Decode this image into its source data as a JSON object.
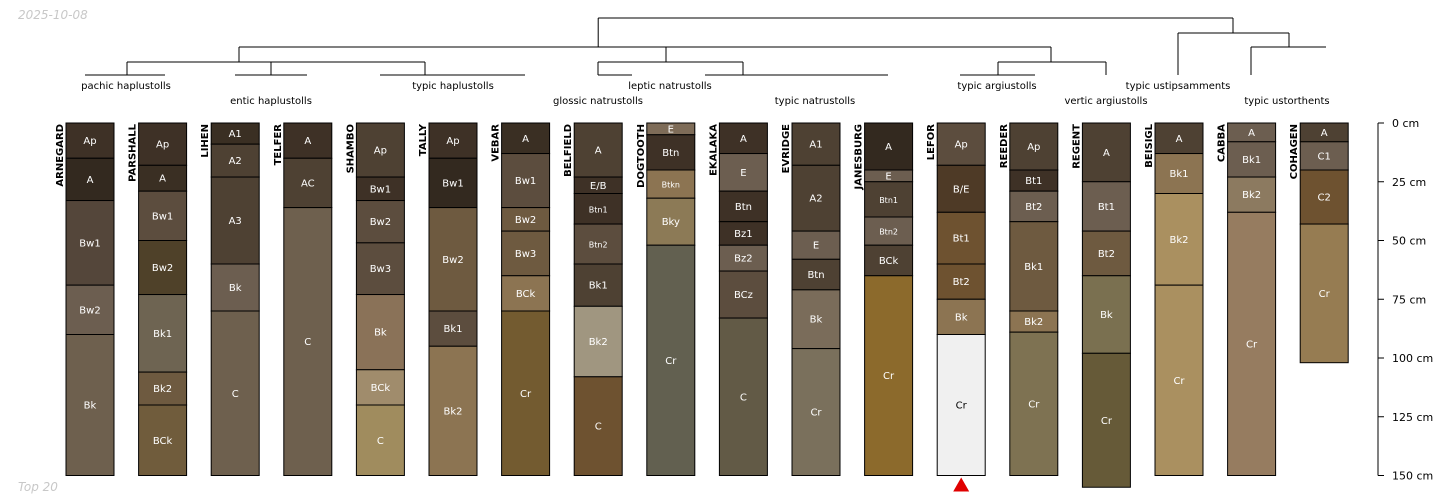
{
  "meta": {
    "date": "2025-10-08",
    "footer": "Top 20"
  },
  "chart_data": {
    "type": "soil-profile-sketch",
    "depth_axis": {
      "unit": "cm",
      "min": 0,
      "max": 150,
      "ticks": [
        {
          "value": 0,
          "label": "0 cm"
        },
        {
          "value": 25,
          "label": "25 cm"
        },
        {
          "value": 50,
          "label": "50 cm"
        },
        {
          "value": 75,
          "label": "75 cm"
        },
        {
          "value": 100,
          "label": "100 cm"
        },
        {
          "value": 125,
          "label": "125 cm"
        },
        {
          "value": 150,
          "label": "150 cm"
        }
      ]
    },
    "profiles": [
      {
        "name": "ARNEGARD",
        "horizons": [
          {
            "name": "Ap",
            "top": 0,
            "bottom": 15,
            "color": "#3e3126"
          },
          {
            "name": "A",
            "top": 15,
            "bottom": 33,
            "color": "#33291f"
          },
          {
            "name": "Bw1",
            "top": 33,
            "bottom": 69,
            "color": "#54463a"
          },
          {
            "name": "Bw2",
            "top": 69,
            "bottom": 90,
            "color": "#6c5e50"
          },
          {
            "name": "Bk",
            "top": 90,
            "bottom": 150,
            "color": "#6e604e"
          }
        ]
      },
      {
        "name": "PARSHALL",
        "horizons": [
          {
            "name": "Ap",
            "top": 0,
            "bottom": 18,
            "color": "#3e3126"
          },
          {
            "name": "A",
            "top": 18,
            "bottom": 29,
            "color": "#3a2f23"
          },
          {
            "name": "Bw1",
            "top": 29,
            "bottom": 50,
            "color": "#5c4d3e"
          },
          {
            "name": "Bw2",
            "top": 50,
            "bottom": 73,
            "color": "#4f4129"
          },
          {
            "name": "Bk1",
            "top": 73,
            "bottom": 106,
            "color": "#6e6452"
          },
          {
            "name": "Bk2",
            "top": 106,
            "bottom": 120,
            "color": "#6e5a40"
          },
          {
            "name": "BCk",
            "top": 120,
            "bottom": 150,
            "color": "#705c3c"
          }
        ]
      },
      {
        "name": "LIHEN",
        "horizons": [
          {
            "name": "A1",
            "top": 0,
            "bottom": 9,
            "color": "#3a2f23"
          },
          {
            "name": "A2",
            "top": 9,
            "bottom": 23,
            "color": "#4e4133"
          },
          {
            "name": "A3",
            "top": 23,
            "bottom": 60,
            "color": "#4e4133"
          },
          {
            "name": "Bk",
            "top": 60,
            "bottom": 80,
            "color": "#6c5e50"
          },
          {
            "name": "C",
            "top": 80,
            "bottom": 150,
            "color": "#6e604e"
          }
        ]
      },
      {
        "name": "TELFER",
        "horizons": [
          {
            "name": "A",
            "top": 0,
            "bottom": 15,
            "color": "#3e3126"
          },
          {
            "name": "AC",
            "top": 15,
            "bottom": 36,
            "color": "#4e4133"
          },
          {
            "name": "C",
            "top": 36,
            "bottom": 150,
            "color": "#6e604e"
          }
        ]
      },
      {
        "name": "SHAMBO",
        "horizons": [
          {
            "name": "Ap",
            "top": 0,
            "bottom": 23,
            "color": "#4e4133"
          },
          {
            "name": "Bw1",
            "top": 23,
            "bottom": 33,
            "color": "#3e3126"
          },
          {
            "name": "Bw2",
            "top": 33,
            "bottom": 51,
            "color": "#5c4d3e"
          },
          {
            "name": "Bw3",
            "top": 51,
            "bottom": 73,
            "color": "#5c4d3e"
          },
          {
            "name": "Bk",
            "top": 73,
            "bottom": 105,
            "color": "#8a7258"
          },
          {
            "name": "BCk",
            "top": 105,
            "bottom": 120,
            "color": "#a08c6c"
          },
          {
            "name": "C",
            "top": 120,
            "bottom": 150,
            "color": "#a08c5e"
          }
        ]
      },
      {
        "name": "TALLY",
        "horizons": [
          {
            "name": "Ap",
            "top": 0,
            "bottom": 15,
            "color": "#3e3126"
          },
          {
            "name": "Bw1",
            "top": 15,
            "bottom": 36,
            "color": "#33291f"
          },
          {
            "name": "Bw2",
            "top": 36,
            "bottom": 80,
            "color": "#6e5a40"
          },
          {
            "name": "Bk1",
            "top": 80,
            "bottom": 95,
            "color": "#5c4d3e"
          },
          {
            "name": "Bk2",
            "top": 95,
            "bottom": 150,
            "color": "#8c7452"
          }
        ]
      },
      {
        "name": "VEBAR",
        "horizons": [
          {
            "name": "A",
            "top": 0,
            "bottom": 13,
            "color": "#3a2f23"
          },
          {
            "name": "Bw1",
            "top": 13,
            "bottom": 36,
            "color": "#5c4d3e"
          },
          {
            "name": "Bw2",
            "top": 36,
            "bottom": 46,
            "color": "#6e5a40"
          },
          {
            "name": "Bw3",
            "top": 46,
            "bottom": 65,
            "color": "#6e5a40"
          },
          {
            "name": "BCk",
            "top": 65,
            "bottom": 80,
            "color": "#8c7452"
          },
          {
            "name": "Cr",
            "top": 80,
            "bottom": 150,
            "color": "#735b30"
          }
        ]
      },
      {
        "name": "BELFIELD",
        "horizons": [
          {
            "name": "A",
            "top": 0,
            "bottom": 23,
            "color": "#4e4133"
          },
          {
            "name": "E/B",
            "top": 23,
            "bottom": 30,
            "color": "#3e3126"
          },
          {
            "name": "Btn1",
            "top": 30,
            "bottom": 43,
            "color": "#3e3126"
          },
          {
            "name": "Btn2",
            "top": 43,
            "bottom": 60,
            "color": "#5c4d3e"
          },
          {
            "name": "Bk1",
            "top": 60,
            "bottom": 78,
            "color": "#4e4133"
          },
          {
            "name": "Bk2",
            "top": 78,
            "bottom": 108,
            "color": "#a09680"
          },
          {
            "name": "C",
            "top": 108,
            "bottom": 150,
            "color": "#6e5230"
          }
        ]
      },
      {
        "name": "DOGTOOTH",
        "horizons": [
          {
            "name": "E",
            "top": 0,
            "bottom": 5,
            "color": "#7e6c58"
          },
          {
            "name": "Btn",
            "top": 5,
            "bottom": 20,
            "color": "#3e3126"
          },
          {
            "name": "Btkn",
            "top": 20,
            "bottom": 32,
            "color": "#8c7452"
          },
          {
            "name": "Bky",
            "top": 32,
            "bottom": 52,
            "color": "#8c7a56"
          },
          {
            "name": "Cr",
            "top": 52,
            "bottom": 150,
            "color": "#626050"
          }
        ]
      },
      {
        "name": "EKALAKA",
        "horizons": [
          {
            "name": "A",
            "top": 0,
            "bottom": 13,
            "color": "#3e3126"
          },
          {
            "name": "E",
            "top": 13,
            "bottom": 29,
            "color": "#6c5e50"
          },
          {
            "name": "Btn",
            "top": 29,
            "bottom": 42,
            "color": "#3e3126"
          },
          {
            "name": "Bz1",
            "top": 42,
            "bottom": 52,
            "color": "#3e3126"
          },
          {
            "name": "Bz2",
            "top": 52,
            "bottom": 63,
            "color": "#6c5e50"
          },
          {
            "name": "BCz",
            "top": 63,
            "bottom": 83,
            "color": "#5c4d3e"
          },
          {
            "name": "C",
            "top": 83,
            "bottom": 150,
            "color": "#625a46"
          }
        ]
      },
      {
        "name": "EVRIDGE",
        "horizons": [
          {
            "name": "A1",
            "top": 0,
            "bottom": 18,
            "color": "#4e4133"
          },
          {
            "name": "A2",
            "top": 18,
            "bottom": 46,
            "color": "#4e4133"
          },
          {
            "name": "E",
            "top": 46,
            "bottom": 58,
            "color": "#6c5e50"
          },
          {
            "name": "Btn",
            "top": 58,
            "bottom": 71,
            "color": "#4e4133"
          },
          {
            "name": "Bk",
            "top": 71,
            "bottom": 96,
            "color": "#7a6c5a"
          },
          {
            "name": "Cr",
            "top": 96,
            "bottom": 150,
            "color": "#7a705c"
          }
        ]
      },
      {
        "name": "JANESBURG",
        "horizons": [
          {
            "name": "A",
            "top": 0,
            "bottom": 20,
            "color": "#33291f"
          },
          {
            "name": "E",
            "top": 20,
            "bottom": 25,
            "color": "#6c5e50"
          },
          {
            "name": "Btn1",
            "top": 25,
            "bottom": 40,
            "color": "#4e4133"
          },
          {
            "name": "Btn2",
            "top": 40,
            "bottom": 52,
            "color": "#6c5e50"
          },
          {
            "name": "BCk",
            "top": 52,
            "bottom": 65,
            "color": "#4e4133"
          },
          {
            "name": "Cr",
            "top": 65,
            "bottom": 150,
            "color": "#8c6a2c"
          }
        ]
      },
      {
        "name": "LEFOR",
        "horizons": [
          {
            "name": "Ap",
            "top": 0,
            "bottom": 18,
            "color": "#5c4d3e"
          },
          {
            "name": "B/E",
            "top": 18,
            "bottom": 38,
            "color": "#4e3a26"
          },
          {
            "name": "Bt1",
            "top": 38,
            "bottom": 60,
            "color": "#6e5230"
          },
          {
            "name": "Bt2",
            "top": 60,
            "bottom": 75,
            "color": "#6e5230"
          },
          {
            "name": "Bk",
            "top": 75,
            "bottom": 90,
            "color": "#8c7452"
          },
          {
            "name": "Cr",
            "top": 90,
            "bottom": 150,
            "color": "#f0f0f0"
          }
        ]
      },
      {
        "name": "REEDER",
        "horizons": [
          {
            "name": "Ap",
            "top": 0,
            "bottom": 20,
            "color": "#4e4133"
          },
          {
            "name": "Bt1",
            "top": 20,
            "bottom": 29,
            "color": "#3e3126"
          },
          {
            "name": "Bt2",
            "top": 29,
            "bottom": 42,
            "color": "#6c5e50"
          },
          {
            "name": "Bk1",
            "top": 42,
            "bottom": 80,
            "color": "#6e5a40"
          },
          {
            "name": "Bk2",
            "top": 80,
            "bottom": 89,
            "color": "#8c7452"
          },
          {
            "name": "Cr",
            "top": 89,
            "bottom": 150,
            "color": "#7e7252"
          }
        ]
      },
      {
        "name": "REGENT",
        "horizons": [
          {
            "name": "A",
            "top": 0,
            "bottom": 25,
            "color": "#4e4133"
          },
          {
            "name": "Bt1",
            "top": 25,
            "bottom": 46,
            "color": "#6c5e50"
          },
          {
            "name": "Bt2",
            "top": 46,
            "bottom": 65,
            "color": "#6e5a40"
          },
          {
            "name": "Bk",
            "top": 65,
            "bottom": 98,
            "color": "#7a7050"
          },
          {
            "name": "Cr",
            "top": 98,
            "bottom": 155,
            "color": "#665a38"
          }
        ]
      },
      {
        "name": "BEISIGL",
        "horizons": [
          {
            "name": "A",
            "top": 0,
            "bottom": 13,
            "color": "#4e4133"
          },
          {
            "name": "Bk1",
            "top": 13,
            "bottom": 30,
            "color": "#8c7452"
          },
          {
            "name": "Bk2",
            "top": 30,
            "bottom": 69,
            "color": "#aa9060"
          },
          {
            "name": "Cr",
            "top": 69,
            "bottom": 150,
            "color": "#aa9060"
          }
        ]
      },
      {
        "name": "CABBA",
        "horizons": [
          {
            "name": "A",
            "top": 0,
            "bottom": 8,
            "color": "#6c5e50"
          },
          {
            "name": "Bk1",
            "top": 8,
            "bottom": 23,
            "color": "#6c5e50"
          },
          {
            "name": "Bk2",
            "top": 23,
            "bottom": 38,
            "color": "#8c7a60"
          },
          {
            "name": "Cr",
            "top": 38,
            "bottom": 150,
            "color": "#967c60"
          }
        ]
      },
      {
        "name": "COHAGEN",
        "horizons": [
          {
            "name": "A",
            "top": 0,
            "bottom": 8,
            "color": "#4e4133"
          },
          {
            "name": "C1",
            "top": 8,
            "bottom": 20,
            "color": "#6c5e50"
          },
          {
            "name": "C2",
            "top": 20,
            "bottom": 43,
            "color": "#6e5230"
          },
          {
            "name": "Cr",
            "top": 43,
            "bottom": 102,
            "color": "#967c52"
          }
        ]
      }
    ],
    "taxa": [
      {
        "label": "pachic haplustolls",
        "row": 1
      },
      {
        "label": "entic haplustolls",
        "row": 2
      },
      {
        "label": "typic haplustolls",
        "row": 1
      },
      {
        "label": "glossic natrustolls",
        "row": 2
      },
      {
        "label": "leptic natrustolls",
        "row": 1
      },
      {
        "label": "typic natrustolls",
        "row": 2
      },
      {
        "label": "typic argiustolls",
        "row": 1
      },
      {
        "label": "vertic argiustolls",
        "row": 2
      },
      {
        "label": "typic ustipsamments",
        "row": 1
      },
      {
        "label": "typic ustorthents",
        "row": 2
      }
    ],
    "marker": {
      "profile": "LEFOR",
      "symbol": "triangle",
      "color": "#e00000"
    }
  }
}
